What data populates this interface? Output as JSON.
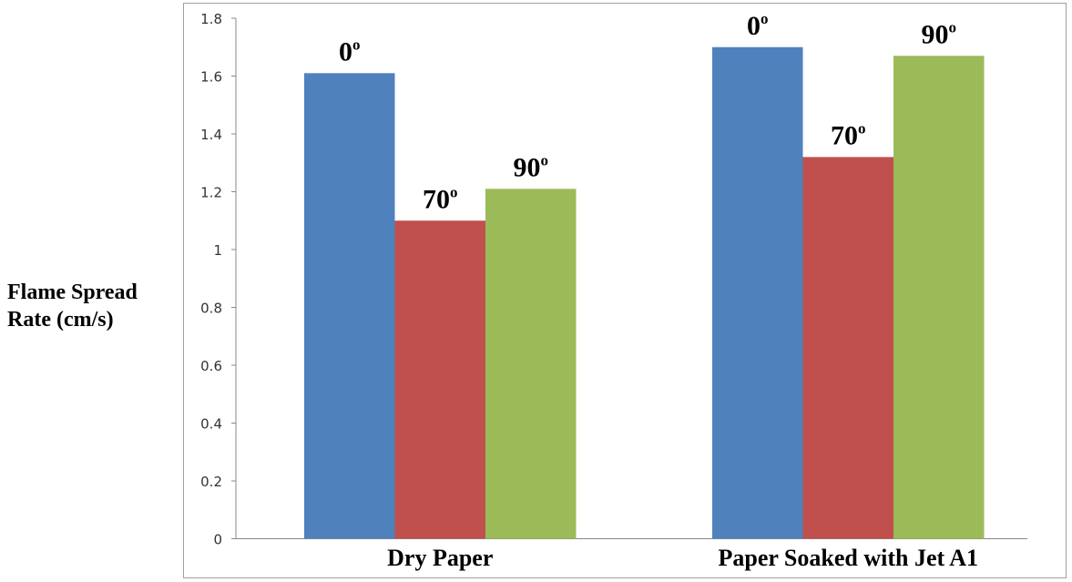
{
  "chart_data": {
    "type": "bar",
    "title": "",
    "xlabel": "",
    "ylabel": [
      "Flame Spread",
      "Rate (cm/s)"
    ],
    "ylim": [
      0,
      1.8
    ],
    "yticks": [
      "0",
      "0.2",
      "0.4",
      "0.6",
      "0.8",
      "1",
      "1.2",
      "1.4",
      "1.6",
      "1.8"
    ],
    "grid": false,
    "categories": [
      "Dry Paper",
      "Paper Soaked with Jet A1"
    ],
    "series": [
      {
        "label": "0",
        "color": "#4f81bd",
        "values": [
          1.61,
          1.7
        ]
      },
      {
        "label": "70",
        "color": "#c0504d",
        "values": [
          1.1,
          1.32
        ]
      },
      {
        "label": "90",
        "color": "#9bbb59",
        "values": [
          1.21,
          1.67
        ]
      }
    ],
    "degree_symbol": "o"
  }
}
